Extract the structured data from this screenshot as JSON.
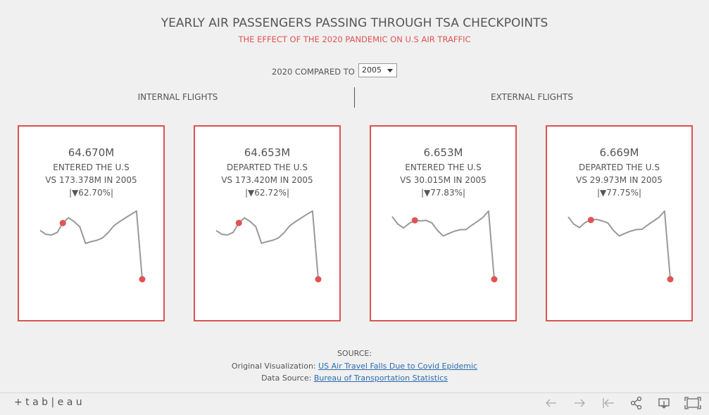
{
  "header": {
    "title": "YEARLY AIR PASSENGERS PASSING THROUGH TSA CHECKPOINTS",
    "subtitle": "THE EFFECT OF THE 2020 PANDEMIC ON U.S AIR TRAFFIC"
  },
  "filter": {
    "label": "2020 COMPARED TO",
    "value": "2005"
  },
  "sections": [
    "INTERNAL FLIGHTS",
    "EXTERNAL FLIGHTS"
  ],
  "chart_data": [
    {
      "type": "line",
      "title": "64.670M",
      "subtitle": "ENTERED THE U.S",
      "comparison": "VS 173.378M IN 2005",
      "change": "|▼62.70%|",
      "color": "#999999",
      "highlight": [
        4,
        18
      ],
      "highlight_color": "#e05353",
      "values": [
        158.9,
        151.6,
        150.2,
        155.0,
        173.378,
        183.5,
        176.0,
        166.0,
        134.0,
        137.5,
        140.0,
        144.5,
        155.0,
        168.0,
        176.0,
        183.0,
        190.0,
        196.6,
        64.67
      ]
    },
    {
      "type": "line",
      "title": "64.653M",
      "subtitle": "DEPARTED THE U.S",
      "comparison": "VS 173.420M IN 2005",
      "change": "|▼62.72%|",
      "color": "#999999",
      "highlight": [
        4,
        18
      ],
      "highlight_color": "#e05353",
      "values": [
        158.7,
        151.5,
        150.3,
        155.2,
        173.42,
        183.2,
        176.2,
        166.1,
        134.2,
        137.4,
        140.1,
        144.6,
        155.1,
        168.2,
        176.1,
        183.1,
        190.1,
        196.5,
        64.653
      ]
    },
    {
      "type": "line",
      "title": "6.653M",
      "subtitle": "ENTERED THE U.S",
      "comparison": "VS 30.015M IN 2005",
      "change": "|▼77.83%|",
      "color": "#999999",
      "highlight": [
        4,
        18
      ],
      "highlight_color": "#e05353",
      "values": [
        31.5,
        28.5,
        27.0,
        28.8,
        30.015,
        29.8,
        30.0,
        29.0,
        26.0,
        23.8,
        24.8,
        25.7,
        26.3,
        26.3,
        28.0,
        29.5,
        31.2,
        33.7,
        6.653
      ]
    },
    {
      "type": "line",
      "title": "6.669M",
      "subtitle": "DEPARTED THE U.S",
      "comparison": "VS 29.973M IN 2005",
      "change": "|▼77.75%|",
      "color": "#999999",
      "highlight": [
        4,
        18
      ],
      "highlight_color": "#e05353",
      "values": [
        31.2,
        28.3,
        27.0,
        29.0,
        29.973,
        30.2,
        29.6,
        28.8,
        25.8,
        23.7,
        24.7,
        25.6,
        26.2,
        26.3,
        28.0,
        29.5,
        31.0,
        33.5,
        6.669
      ]
    }
  ],
  "source": {
    "heading": "SOURCE:",
    "original_label": "Original Visualization:",
    "original_link": "US Air Travel Falls Due to Covid Epidemic",
    "data_label": "Data Source:",
    "data_link": "Bureau of Transportation Statistics"
  },
  "footer": {
    "logo": "+ t a b | e a u"
  }
}
